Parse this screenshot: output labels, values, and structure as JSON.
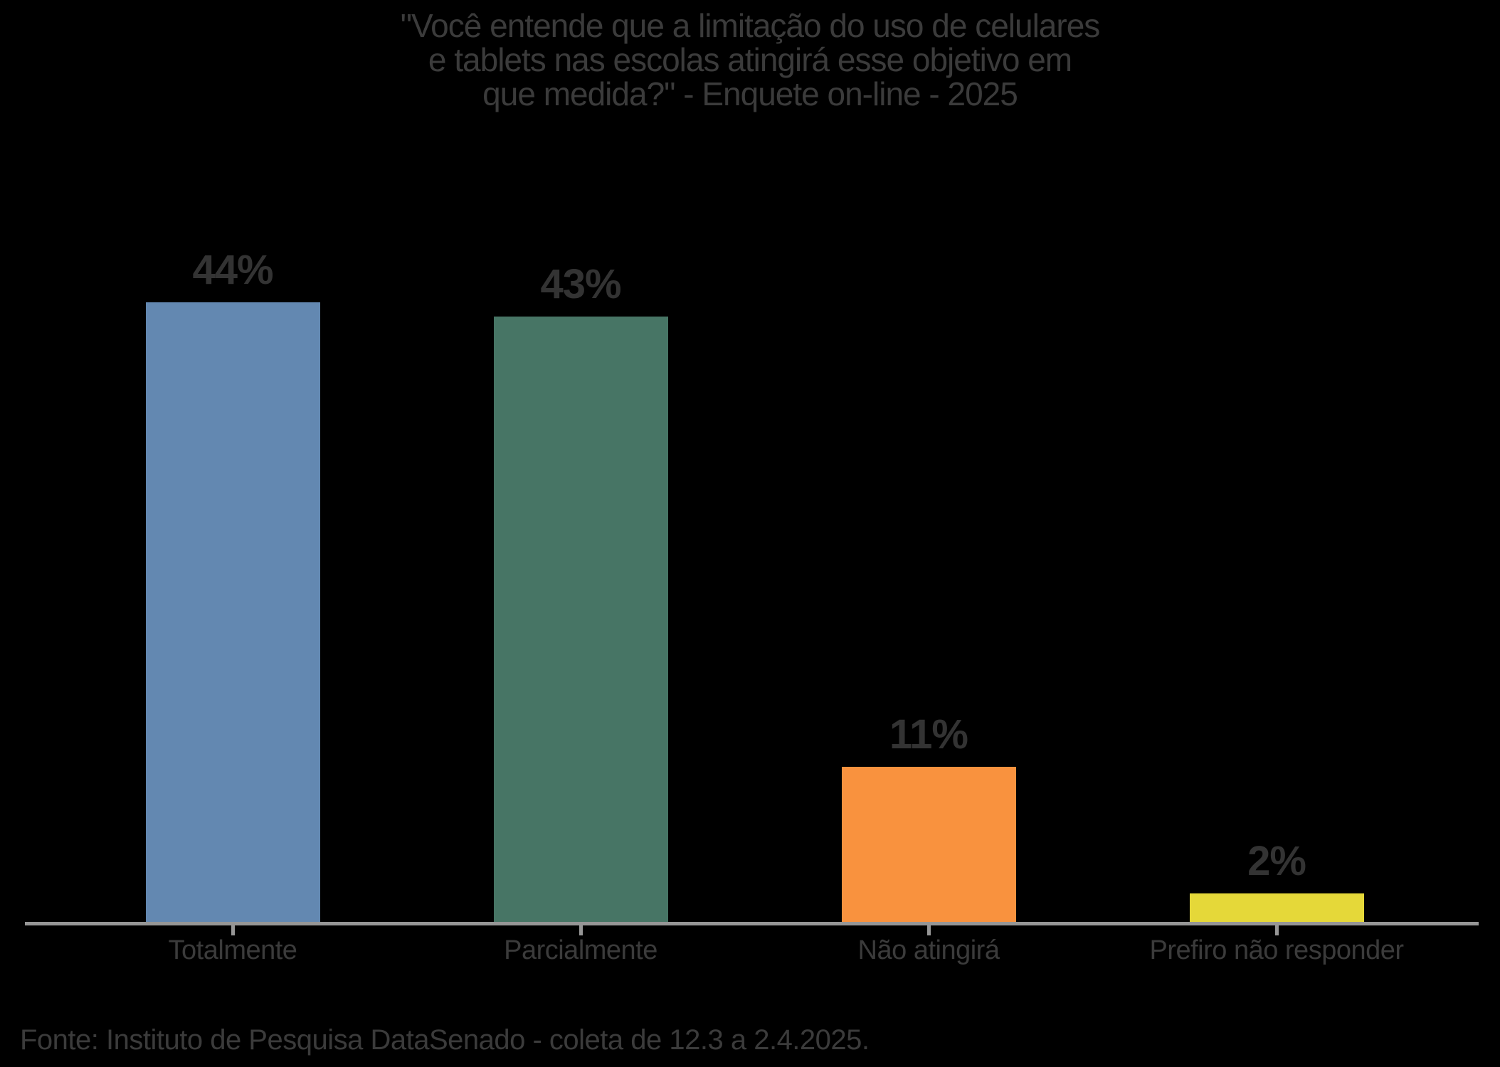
{
  "title": {
    "lines": [
      "\"Você entende que a limitação do uso de celulares",
      "e tablets nas escolas atingirá esse objetivo em",
      "que medida?\" - Enquete on-line - 2025"
    ]
  },
  "source": "Fonte: Instituto de Pesquisa DataSenado - coleta de 12.3 a 2.4.2025.",
  "chart_data": {
    "type": "bar",
    "title": "\"Você entende que a limitação do uso de celulares e tablets nas escolas atingirá esse objetivo em que medida?\" - Enquete on-line - 2025",
    "categories": [
      "Totalmente",
      "Parcialmente",
      "Não atingirá",
      "Prefiro não responder"
    ],
    "values": [
      44,
      43,
      11,
      2
    ],
    "value_labels": [
      "44%",
      "43%",
      "11%",
      "2%"
    ],
    "colors": [
      "#6388b1",
      "#477565",
      "#f9923e",
      "#e5d839"
    ],
    "slugs": [
      "totalmente",
      "parcialmente",
      "nao-atingira",
      "prefiro-nao-responder"
    ],
    "xlabel": "",
    "ylabel": "",
    "ylim": [
      0,
      50
    ],
    "grid": false,
    "legend": "none",
    "axis_color": "#969696",
    "value_label_position": "above-bars",
    "source_note": "Fonte: Instituto de Pesquisa DataSenado - coleta de 12.3 a 2.4.2025."
  }
}
